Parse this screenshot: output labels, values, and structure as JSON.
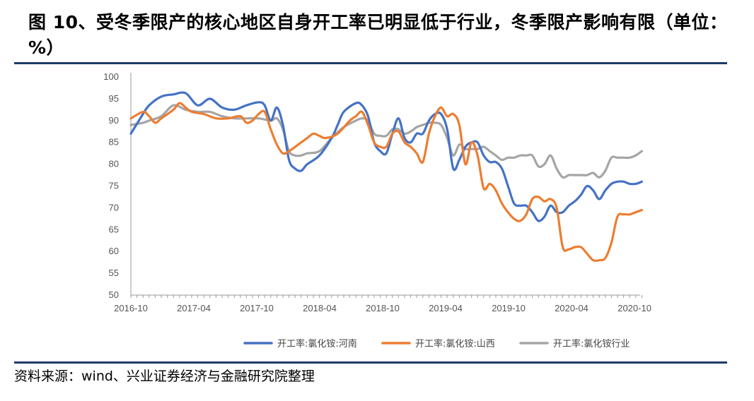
{
  "figure": {
    "title": "图 10、受冬季限产的核心地区自身开工率已明显低于行业，冬季限产影响有限（单位：%）",
    "source": "资料来源：wind、兴业证券经济与金融研究院整理"
  },
  "colors": {
    "henan": "#4472c4",
    "shanxi": "#ed7d31",
    "industry": "#a5a5a5",
    "rule": "#1f3a68"
  },
  "chart_data": {
    "type": "line",
    "title": "",
    "xlabel": "",
    "ylabel": "",
    "ylim": [
      50,
      100
    ],
    "yticks": [
      "100",
      "95",
      "90",
      "85",
      "80",
      "75",
      "70",
      "65",
      "60",
      "55",
      "50"
    ],
    "xticks": [
      "2016-10",
      "2017-04",
      "2017-10",
      "2018-04",
      "2018-10",
      "2019-04",
      "2019-10",
      "2020-04",
      "2020-10"
    ],
    "legend_position": "bottom",
    "grid": false,
    "series": [
      {
        "name": "开工率:氯化铵:河南",
        "color": "#4472c4",
        "points": [
          [
            0,
            87
          ],
          [
            2,
            91.5
          ],
          [
            3,
            93.5
          ],
          [
            5,
            95.5
          ],
          [
            7,
            96
          ],
          [
            9,
            96.3
          ],
          [
            11,
            93.5
          ],
          [
            13,
            95
          ],
          [
            15,
            93
          ],
          [
            17,
            92.5
          ],
          [
            19,
            93.5
          ],
          [
            21,
            94.2
          ],
          [
            22,
            93.5
          ],
          [
            23,
            90
          ],
          [
            24,
            93
          ],
          [
            25,
            89
          ],
          [
            26,
            81
          ],
          [
            27,
            79
          ],
          [
            28,
            78.5
          ],
          [
            29,
            80
          ],
          [
            31,
            82
          ],
          [
            33,
            86
          ],
          [
            34,
            89
          ],
          [
            35,
            92
          ],
          [
            37,
            94
          ],
          [
            38,
            93.5
          ],
          [
            39,
            91
          ],
          [
            40,
            85
          ],
          [
            41,
            83
          ],
          [
            42,
            82.5
          ],
          [
            43,
            87
          ],
          [
            44,
            90.5
          ],
          [
            45,
            86
          ],
          [
            46,
            85
          ],
          [
            47,
            87
          ],
          [
            48,
            87
          ],
          [
            49,
            90
          ],
          [
            50,
            91.5
          ],
          [
            51,
            91.5
          ],
          [
            52,
            88
          ],
          [
            53,
            79
          ],
          [
            54,
            81
          ],
          [
            55,
            84
          ],
          [
            56,
            85
          ],
          [
            57,
            85
          ],
          [
            58,
            82
          ],
          [
            59,
            80.5
          ],
          [
            60,
            80.5
          ],
          [
            61,
            79
          ],
          [
            62,
            75
          ],
          [
            63,
            71
          ],
          [
            64,
            70.5
          ],
          [
            65,
            70.5
          ],
          [
            66,
            69
          ],
          [
            67,
            67
          ],
          [
            68,
            68
          ],
          [
            69,
            70.5
          ],
          [
            70,
            69
          ],
          [
            71,
            69
          ],
          [
            72,
            70.5
          ],
          [
            73,
            71.5
          ],
          [
            74,
            73
          ],
          [
            75,
            75
          ],
          [
            76,
            74
          ],
          [
            77,
            72
          ],
          [
            78,
            74
          ],
          [
            79,
            75.5
          ],
          [
            80,
            76
          ],
          [
            81,
            76
          ],
          [
            82,
            75.5
          ],
          [
            83,
            75.5
          ],
          [
            84,
            76
          ]
        ]
      },
      {
        "name": "开工率:氯化铵:山西",
        "color": "#ed7d31",
        "points": [
          [
            0,
            90.5
          ],
          [
            2,
            92
          ],
          [
            3,
            91
          ],
          [
            4,
            89.5
          ],
          [
            5,
            90.5
          ],
          [
            7,
            92.5
          ],
          [
            8,
            94
          ],
          [
            9,
            93
          ],
          [
            10,
            92
          ],
          [
            12,
            91.5
          ],
          [
            14,
            90.5
          ],
          [
            16,
            90.5
          ],
          [
            18,
            91
          ],
          [
            19,
            89.5
          ],
          [
            20,
            90
          ],
          [
            21,
            91.5
          ],
          [
            22,
            92
          ],
          [
            23,
            88
          ],
          [
            24,
            84.5
          ],
          [
            25,
            82.5
          ],
          [
            26,
            83
          ],
          [
            28,
            85
          ],
          [
            29,
            86
          ],
          [
            30,
            87
          ],
          [
            31,
            86.5
          ],
          [
            32,
            86
          ],
          [
            34,
            87
          ],
          [
            36,
            90
          ],
          [
            37,
            91
          ],
          [
            38,
            92
          ],
          [
            39,
            89
          ],
          [
            40,
            85
          ],
          [
            41,
            84
          ],
          [
            42,
            84
          ],
          [
            43,
            87
          ],
          [
            44,
            87.5
          ],
          [
            45,
            85
          ],
          [
            46,
            84
          ],
          [
            47,
            82.5
          ],
          [
            48,
            80.5
          ],
          [
            49,
            87
          ],
          [
            50,
            91
          ],
          [
            51,
            93
          ],
          [
            52,
            91
          ],
          [
            53,
            91.5
          ],
          [
            54,
            89
          ],
          [
            55,
            80
          ],
          [
            56,
            85
          ],
          [
            57,
            82
          ],
          [
            58,
            74.5
          ],
          [
            59,
            75.5
          ],
          [
            60,
            74
          ],
          [
            61,
            71
          ],
          [
            62,
            69
          ],
          [
            63,
            67.5
          ],
          [
            64,
            67
          ],
          [
            65,
            68.5
          ],
          [
            66,
            72
          ],
          [
            67,
            72.5
          ],
          [
            68,
            71.5
          ],
          [
            69,
            72
          ],
          [
            70,
            70
          ],
          [
            71,
            61
          ],
          [
            72,
            60.5
          ],
          [
            73,
            61
          ],
          [
            74,
            61
          ],
          [
            75,
            59.5
          ],
          [
            76,
            58
          ],
          [
            77,
            58
          ],
          [
            78,
            58.5
          ],
          [
            79,
            62
          ],
          [
            80,
            68
          ],
          [
            81,
            68.5
          ],
          [
            82,
            68.5
          ],
          [
            83,
            69
          ],
          [
            84,
            69.5
          ]
        ]
      },
      {
        "name": "开工率:氯化铵行业",
        "color": "#a5a5a5",
        "points": [
          [
            0,
            89
          ],
          [
            2,
            89.5
          ],
          [
            3,
            90
          ],
          [
            5,
            91
          ],
          [
            7,
            93.5
          ],
          [
            9,
            92.5
          ],
          [
            11,
            92
          ],
          [
            13,
            92
          ],
          [
            15,
            91
          ],
          [
            17,
            90.5
          ],
          [
            19,
            90.5
          ],
          [
            21,
            90.5
          ],
          [
            23,
            90
          ],
          [
            24,
            90.5
          ],
          [
            25,
            88
          ],
          [
            26,
            83
          ],
          [
            27,
            82
          ],
          [
            28,
            82
          ],
          [
            29,
            82.5
          ],
          [
            31,
            83
          ],
          [
            33,
            86
          ],
          [
            35,
            88.5
          ],
          [
            37,
            90
          ],
          [
            38,
            90.5
          ],
          [
            39,
            90
          ],
          [
            40,
            87
          ],
          [
            41,
            86.5
          ],
          [
            42,
            86.5
          ],
          [
            43,
            88
          ],
          [
            44,
            88
          ],
          [
            45,
            87
          ],
          [
            46,
            87.5
          ],
          [
            47,
            88.5
          ],
          [
            48,
            89
          ],
          [
            49,
            89.5
          ],
          [
            50,
            89.5
          ],
          [
            51,
            89
          ],
          [
            52,
            86
          ],
          [
            53,
            82
          ],
          [
            54,
            84.5
          ],
          [
            55,
            83.5
          ],
          [
            56,
            83.5
          ],
          [
            57,
            83.5
          ],
          [
            58,
            84
          ],
          [
            59,
            83
          ],
          [
            60,
            82
          ],
          [
            61,
            81
          ],
          [
            62,
            81.5
          ],
          [
            63,
            81.5
          ],
          [
            64,
            82
          ],
          [
            65,
            82
          ],
          [
            66,
            82
          ],
          [
            67,
            79.5
          ],
          [
            68,
            80
          ],
          [
            69,
            82
          ],
          [
            70,
            79
          ],
          [
            71,
            77
          ],
          [
            72,
            77.5
          ],
          [
            73,
            77.5
          ],
          [
            74,
            77.5
          ],
          [
            75,
            77.5
          ],
          [
            76,
            78
          ],
          [
            77,
            77
          ],
          [
            78,
            78.5
          ],
          [
            79,
            81.5
          ],
          [
            80,
            81.5
          ],
          [
            81,
            81.5
          ],
          [
            82,
            81.5
          ],
          [
            83,
            82
          ],
          [
            84,
            83
          ]
        ]
      }
    ]
  }
}
